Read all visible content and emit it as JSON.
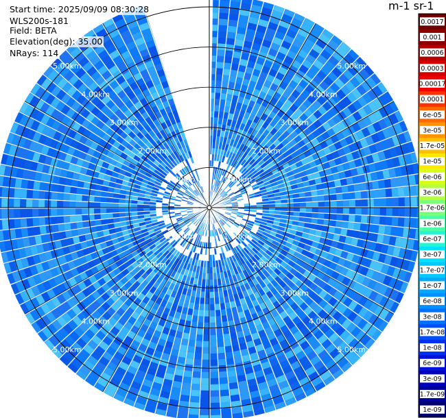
{
  "header": {
    "start_time": "Start time: 2025/09/09 08:30:28",
    "instrument": "WLS200s-181",
    "field": "Field: BETA",
    "elevation": "Elevation(deg): 35.00",
    "nrays": "NRays: 114"
  },
  "colorbar": {
    "title_fragment": "m-1 sr-1",
    "labels": [
      "0.0017",
      "0.001",
      "0.0006",
      "0.0003",
      "0.00017",
      "0.0001",
      "6e-05",
      "3e-05",
      "1.7e-05",
      "1e-05",
      "6e-06",
      "3e-06",
      "1.7e-06",
      "1e-06",
      "6e-07",
      "3e-07",
      "1.7e-07",
      "1e-07",
      "6e-08",
      "3e-08",
      "1.7e-08",
      "1e-08",
      "6e-09",
      "3e-09",
      "1.7e-09",
      "1e-09"
    ],
    "colors": [
      "#6b0000",
      "#8e0000",
      "#b30000",
      "#d40000",
      "#f00000",
      "#ff3300",
      "#ff6a00",
      "#ff9500",
      "#ffbe00",
      "#ffe800",
      "#d8ff1a",
      "#b4ff3e",
      "#7cff78",
      "#4cffa6",
      "#26f5d4",
      "#00e0ff",
      "#00c8ff",
      "#00a8ff",
      "#0090ff",
      "#0070ff",
      "#0050ff",
      "#0030f0",
      "#0010d8",
      "#0000c0",
      "#00009a",
      "#000070"
    ]
  },
  "chart_data": {
    "type": "heatmap",
    "projection": "polar PPI",
    "field": "BETA",
    "units": "m-1 sr-1",
    "color_scale": "log",
    "color_range": [
      1e-09,
      0.0017
    ],
    "range_rings_km": [
      1,
      2,
      3,
      4,
      5
    ],
    "ring_labels": [
      "1.00km",
      "2.00km",
      "3.00km",
      "4.00km",
      "5.00km"
    ],
    "max_range_km": 5.3,
    "azimuth_gap_deg": [
      -18,
      1
    ],
    "rays": 114,
    "typical_value_range": [
      3e-08,
      1e-07
    ],
    "grid": true
  }
}
